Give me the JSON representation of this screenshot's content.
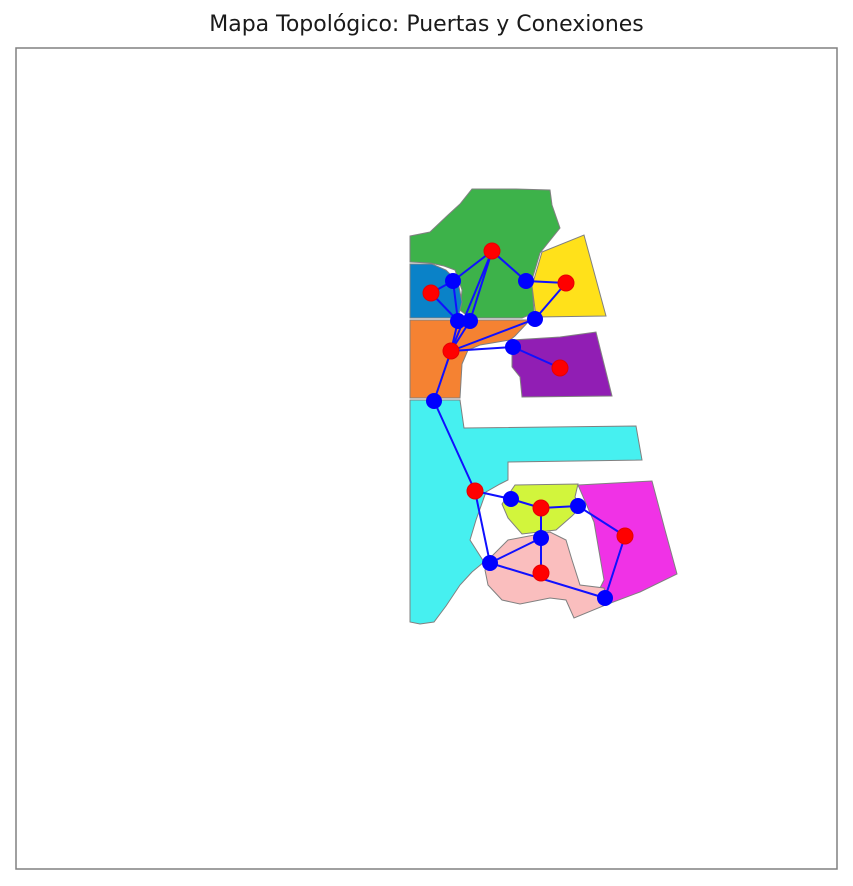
{
  "title": "Mapa Topológico: Puertas y Conexiones",
  "colors": {
    "frame": "#808080",
    "region_outline": "#808080",
    "edge": "#1010ff",
    "door_node": "#0000ff",
    "room_node": "#ff0000",
    "room_node_outline": "#e60000"
  },
  "regions": [
    {
      "name": "green",
      "color": "#3db24a"
    },
    {
      "name": "yellow",
      "color": "#ffe11a"
    },
    {
      "name": "blue",
      "color": "#0a82c8"
    },
    {
      "name": "orange",
      "color": "#f58232"
    },
    {
      "name": "purple",
      "color": "#911eb4"
    },
    {
      "name": "cyan",
      "color": "#46f0f0"
    },
    {
      "name": "lime",
      "color": "#d2f53c"
    },
    {
      "name": "magenta",
      "color": "#f032e6"
    },
    {
      "name": "pink",
      "color": "#fabebe"
    }
  ]
}
